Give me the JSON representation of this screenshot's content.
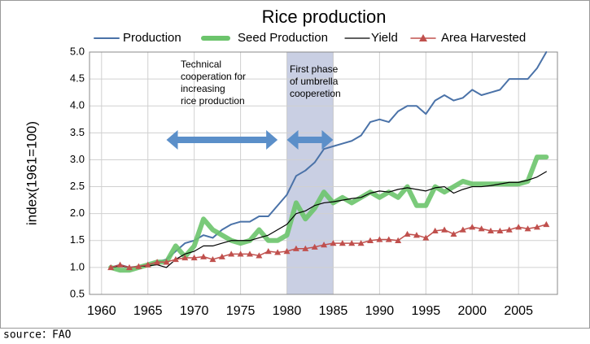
{
  "chart_data": {
    "type": "line",
    "title": "Rice production",
    "y_label": "index(1961=100)",
    "source": "source：FAO",
    "x": [
      1961,
      1962,
      1963,
      1964,
      1965,
      1966,
      1967,
      1968,
      1969,
      1970,
      1971,
      1972,
      1973,
      1974,
      1975,
      1976,
      1977,
      1978,
      1979,
      1980,
      1981,
      1982,
      1983,
      1984,
      1985,
      1986,
      1987,
      1988,
      1989,
      1990,
      1991,
      1992,
      1993,
      1994,
      1995,
      1996,
      1997,
      1998,
      1999,
      2000,
      2001,
      2002,
      2003,
      2004,
      2005,
      2006,
      2007,
      2008
    ],
    "series": [
      {
        "name": "Production",
        "color": "#4a72a8",
        "values": [
          1.0,
          1.05,
          1.0,
          1.02,
          1.05,
          1.1,
          1.15,
          1.3,
          1.45,
          1.5,
          1.6,
          1.55,
          1.7,
          1.8,
          1.85,
          1.85,
          1.95,
          1.95,
          2.15,
          2.35,
          2.7,
          2.8,
          2.95,
          3.2,
          3.25,
          3.3,
          3.35,
          3.45,
          3.7,
          3.75,
          3.7,
          3.9,
          4.0,
          4.0,
          3.85,
          4.1,
          4.2,
          4.1,
          4.15,
          4.3,
          4.2,
          4.25,
          4.3,
          4.5,
          4.5,
          4.5,
          4.7,
          5.0
        ]
      },
      {
        "name": "Seed Production",
        "color": "#6cc46c",
        "values": [
          1.0,
          0.95,
          0.95,
          1.0,
          1.05,
          1.1,
          1.1,
          1.4,
          1.2,
          1.4,
          1.9,
          1.7,
          1.6,
          1.5,
          1.45,
          1.5,
          1.7,
          1.5,
          1.5,
          1.6,
          2.2,
          1.9,
          2.1,
          2.4,
          2.2,
          2.3,
          2.2,
          2.3,
          2.4,
          2.3,
          2.4,
          2.3,
          2.5,
          2.15,
          2.15,
          2.5,
          2.4,
          2.5,
          2.6,
          2.55,
          2.55,
          2.55,
          2.55,
          2.55,
          2.55,
          2.6,
          3.05,
          3.05
        ]
      },
      {
        "name": "Yield",
        "color": "#000000",
        "values": [
          1.0,
          1.03,
          1.0,
          1.02,
          1.03,
          1.05,
          1.0,
          1.15,
          1.25,
          1.3,
          1.4,
          1.4,
          1.45,
          1.5,
          1.5,
          1.5,
          1.55,
          1.6,
          1.7,
          1.8,
          2.0,
          2.05,
          2.15,
          2.2,
          2.22,
          2.25,
          2.28,
          2.3,
          2.38,
          2.42,
          2.4,
          2.45,
          2.48,
          2.45,
          2.42,
          2.48,
          2.5,
          2.38,
          2.45,
          2.5,
          2.5,
          2.52,
          2.55,
          2.58,
          2.58,
          2.62,
          2.68,
          2.78
        ]
      },
      {
        "name": "Area Harvested",
        "color": "#c0504d",
        "values": [
          1.0,
          1.05,
          1.0,
          1.02,
          1.05,
          1.1,
          1.1,
          1.15,
          1.18,
          1.18,
          1.2,
          1.15,
          1.2,
          1.25,
          1.25,
          1.25,
          1.22,
          1.3,
          1.28,
          1.3,
          1.35,
          1.35,
          1.38,
          1.42,
          1.45,
          1.45,
          1.45,
          1.45,
          1.5,
          1.52,
          1.52,
          1.5,
          1.62,
          1.6,
          1.55,
          1.68,
          1.7,
          1.62,
          1.7,
          1.75,
          1.72,
          1.68,
          1.68,
          1.7,
          1.75,
          1.72,
          1.75,
          1.8
        ]
      }
    ],
    "xlim": [
      1958.7,
      2009.2
    ],
    "xticks": [
      1960,
      1965,
      1970,
      1975,
      1980,
      1985,
      1990,
      1995,
      2000,
      2005
    ],
    "ylim": [
      0.5,
      5.0
    ],
    "yticks": [
      0.5,
      {
        "value": 1,
        "label": "1.0"
      },
      1.5,
      {
        "value": 2,
        "label": "2.0"
      },
      2.5,
      {
        "value": 3,
        "label": "3.0"
      },
      3.5,
      {
        "value": 4,
        "label": "4.0"
      },
      4.5,
      {
        "value": 5,
        "label": "5.0"
      }
    ],
    "grid": true,
    "highlight_x": [
      1980,
      1985
    ],
    "arrows": [
      [
        1967,
        1979
      ],
      [
        1980,
        1985
      ]
    ],
    "annotations": [
      {
        "lines": [
          "Technical",
          "cooperation for",
          "increasing",
          "rice production"
        ]
      },
      {
        "lines": [
          "First phase",
          "of umbrella",
          "cooperetion"
        ]
      }
    ]
  }
}
